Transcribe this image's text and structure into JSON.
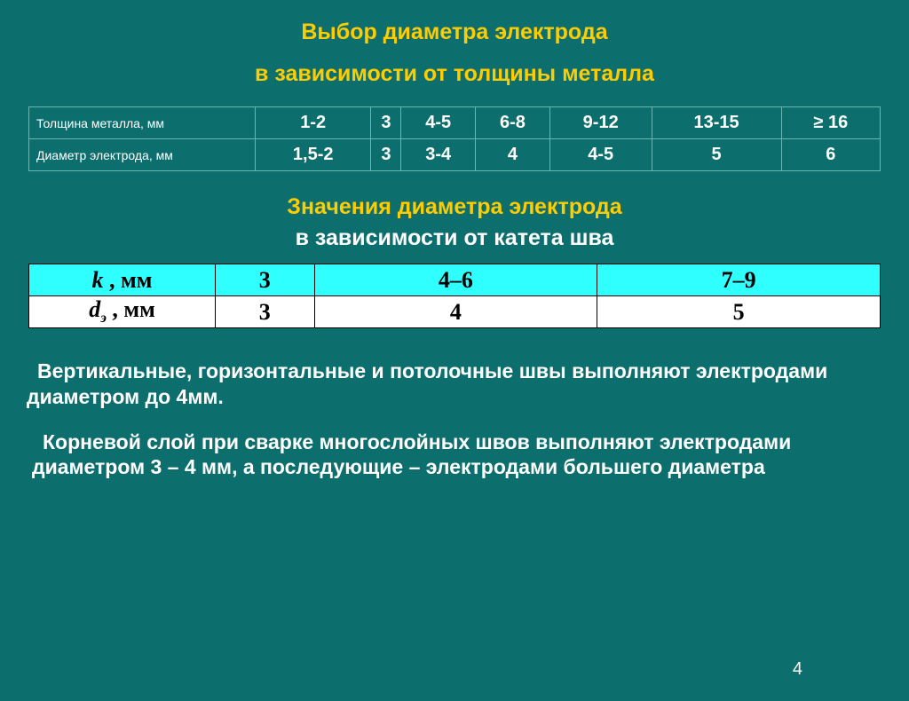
{
  "heading": {
    "line1": "Выбор диаметра электрода",
    "line2": "в зависимости от толщины металла"
  },
  "table1": {
    "row1_header": "Толщина металла, мм",
    "row2_header": "Диаметр электрода, мм",
    "columns": [
      "1-2",
      "3",
      "4-5",
      "6-8",
      "9-12",
      "13-15",
      "≥ 16"
    ],
    "diameters": [
      "1,5-2",
      "3",
      "3-4",
      "4",
      "4-5",
      "5",
      "6"
    ]
  },
  "heading2": {
    "line1": "Значения диаметра электрода",
    "line2": "в зависимости от катета шва"
  },
  "table2": {
    "row1_label_sym": "k",
    "row1_label_unit": " , мм",
    "row2_label_sym": "d",
    "row2_label_sub": "э",
    "row2_label_unit": " , мм",
    "k": [
      "3",
      "4–6",
      "7–9"
    ],
    "d": [
      "3",
      "4",
      "5"
    ]
  },
  "para1": "Вертикальные, горизонтальные и потолочные швы выполняют электродами диаметром до 4мм.",
  "para2": "Корневой слой при сварке многослойных швов выполняют электродами диаметром 3 – 4 мм, а последующие – электродами большего диаметра",
  "pagenum": "4",
  "colors": {
    "background": "#0d6e6e",
    "yellow": "#ffcc00",
    "cyan": "#2fffff",
    "white": "#ffffff",
    "t1border": "#6bb5b5",
    "black": "#000000"
  }
}
